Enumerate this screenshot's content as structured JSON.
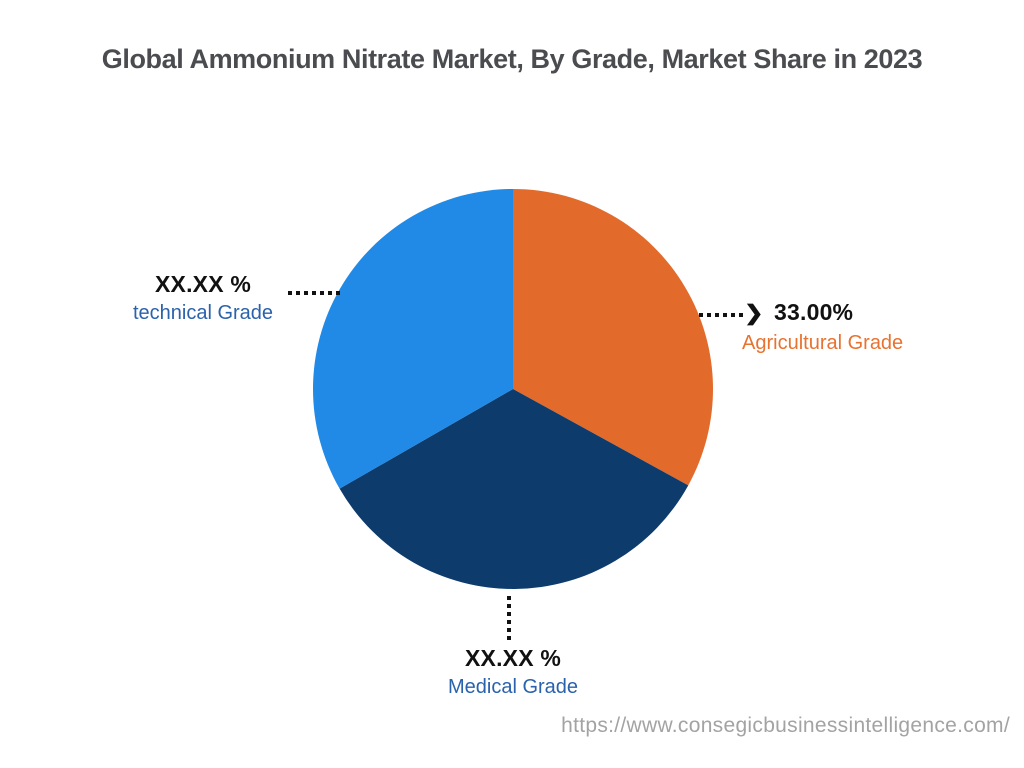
{
  "header": {
    "title": "Global Ammonium Nitrate Market, By Grade, Market Share in 2023",
    "title_color": "#4a4c50"
  },
  "chart_data": {
    "type": "pie",
    "title": "Global Ammonium Nitrate Market, By Grade, Market Share in 2023",
    "direction": "clockwise",
    "start_angle_deg": 0,
    "legend_position": "none",
    "slices": [
      {
        "label": "Agricultural Grade",
        "value_display": "33.00%",
        "value": 33.0,
        "color": "#e26b2b",
        "label_color": "#e8722f"
      },
      {
        "label": "Medical Grade",
        "value_display": "XX.XX %",
        "value": 33.7,
        "color": "#0c3b6c",
        "label_color": "#2a62ac"
      },
      {
        "label": "technical Grade",
        "value_display": "XX.XX %",
        "value": 33.3,
        "color": "#2189e6",
        "label_color": "#2a62ac"
      }
    ]
  },
  "callouts": {
    "value_text_color": "#111111",
    "leader_color": "#121212",
    "arrow_glyph": "❯"
  },
  "footer": {
    "url": "https://www.consegicbusinessintelligence.com/",
    "url_color": "#a3a3a3"
  }
}
